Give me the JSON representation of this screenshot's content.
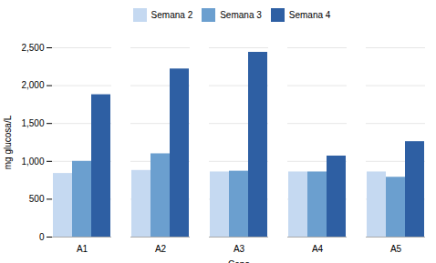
{
  "chart_data": {
    "type": "bar",
    "categories": [
      "A1",
      "A2",
      "A3",
      "A4",
      "A5"
    ],
    "series": [
      {
        "name": "Semana 2",
        "color": "#c5d9f1",
        "values": [
          840,
          880,
          860,
          860,
          860
        ]
      },
      {
        "name": "Semana 3",
        "color": "#6b9fcf",
        "values": [
          1000,
          1100,
          870,
          860,
          790
        ]
      },
      {
        "name": "Semana 4",
        "color": "#2e5fa3",
        "values": [
          1880,
          2220,
          2440,
          1070,
          1260
        ]
      }
    ],
    "xlabel": "Cepa",
    "ylabel": "mg glucosa/L",
    "ylim": [
      0,
      2500
    ],
    "yticks": [
      0,
      500,
      1000,
      1500,
      2000,
      2500
    ],
    "grid": true,
    "legend": "top"
  }
}
